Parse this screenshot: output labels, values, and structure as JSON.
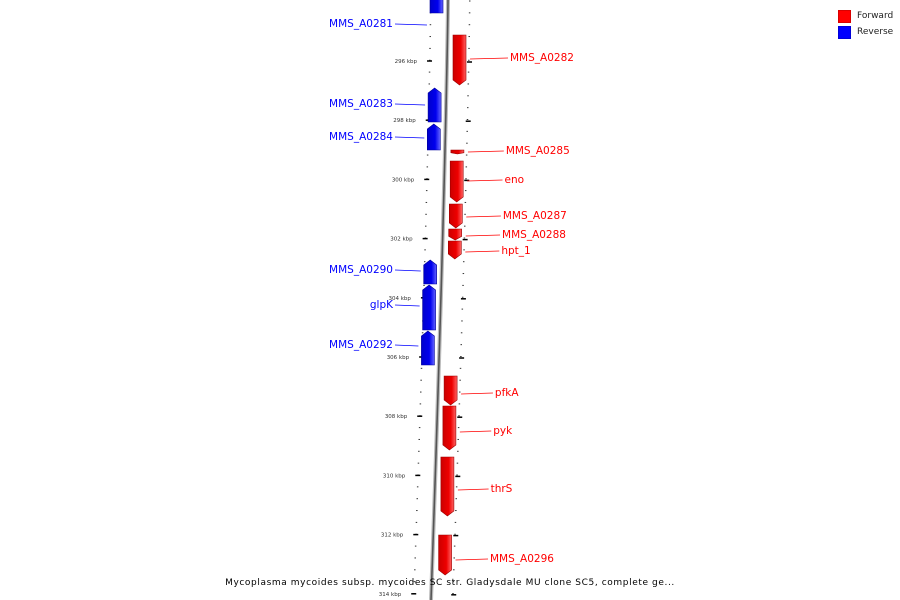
{
  "legend": {
    "forward": {
      "label": "Forward",
      "color": "#ff0000"
    },
    "reverse": {
      "label": "Reverse",
      "color": "#0000ff"
    }
  },
  "caption": "Mycoplasma mycoides subsp. mycoides SC str. Gladysdale MU clone SC5, complete ge...",
  "ruler": {
    "ticks": [
      "296 kbp",
      "298 kbp",
      "300 kbp",
      "302 kbp",
      "304 kbp",
      "306 kbp",
      "308 kbp",
      "310 kbp",
      "312 kbp",
      "314 kbp"
    ]
  },
  "genes": [
    {
      "label": "MMS_A0281",
      "strand": "reverse"
    },
    {
      "label": "MMS_A0282",
      "strand": "forward"
    },
    {
      "label": "MMS_A0283",
      "strand": "reverse"
    },
    {
      "label": "MMS_A0284",
      "strand": "reverse"
    },
    {
      "label": "MMS_A0285",
      "strand": "forward"
    },
    {
      "label": "eno",
      "strand": "forward"
    },
    {
      "label": "MMS_A0287",
      "strand": "forward"
    },
    {
      "label": "MMS_A0288",
      "strand": "forward"
    },
    {
      "label": "hpt_1",
      "strand": "forward"
    },
    {
      "label": "MMS_A0290",
      "strand": "reverse"
    },
    {
      "label": "glpK",
      "strand": "reverse"
    },
    {
      "label": "MMS_A0292",
      "strand": "reverse"
    },
    {
      "label": "pfkA",
      "strand": "forward"
    },
    {
      "label": "pyk",
      "strand": "forward"
    },
    {
      "label": "thrS",
      "strand": "forward"
    },
    {
      "label": "MMS_A0296",
      "strand": "forward"
    }
  ]
}
